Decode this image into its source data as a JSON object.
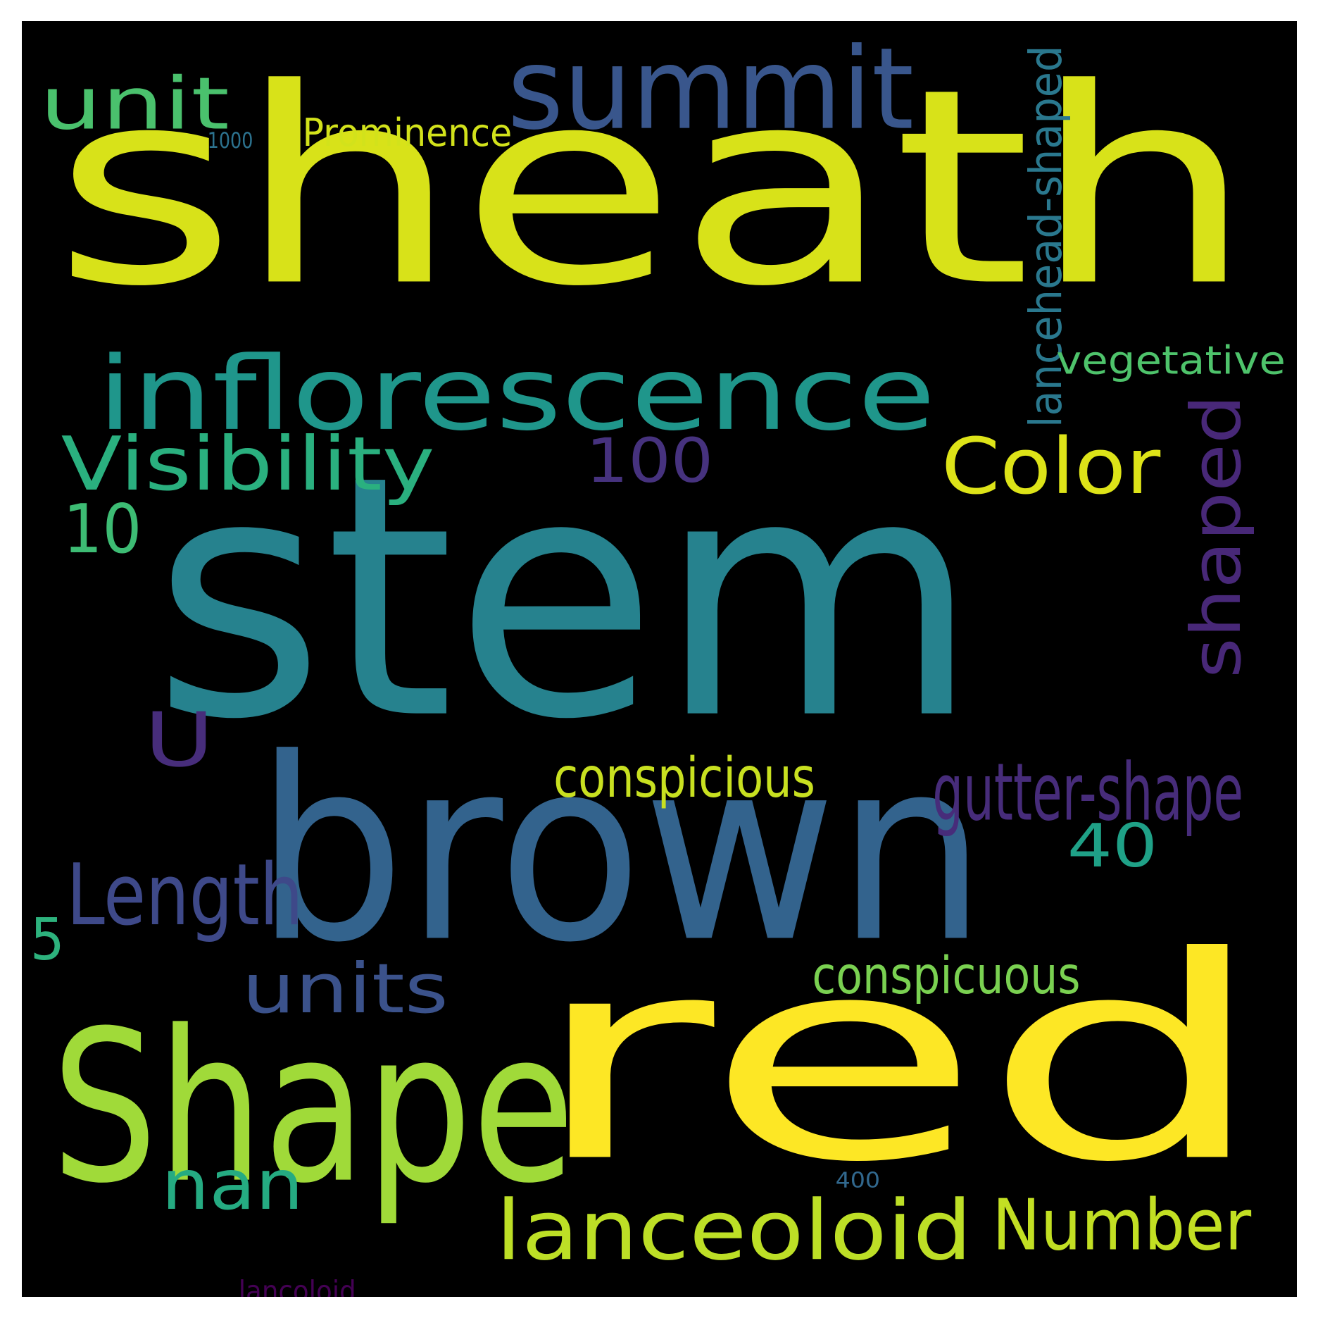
{
  "background": "#000000",
  "words": [
    {
      "id": "sheath",
      "text": "sheath",
      "color": "#d8e219"
    },
    {
      "id": "stem",
      "text": "stem",
      "color": "#26828e"
    },
    {
      "id": "brown",
      "text": "brown",
      "color": "#33638d"
    },
    {
      "id": "red",
      "text": "red",
      "color": "#fde725"
    },
    {
      "id": "shape-cap",
      "text": "Shape",
      "color": "#a0da39"
    },
    {
      "id": "inflorescence",
      "text": "inflorescence",
      "color": "#1f968b"
    },
    {
      "id": "summit",
      "text": "summit",
      "color": "#39568c"
    },
    {
      "id": "lanceoloid",
      "text": "lanceoloid",
      "color": "#bddf26"
    },
    {
      "id": "number",
      "text": "Number",
      "color": "#c2df23"
    },
    {
      "id": "shaped",
      "text": "shaped",
      "color": "#482878"
    },
    {
      "id": "length",
      "text": "Length",
      "color": "#3e4989"
    },
    {
      "id": "unit",
      "text": "unit",
      "color": "#4ac16d"
    },
    {
      "id": "visibility",
      "text": "Visibility",
      "color": "#2ab07f"
    },
    {
      "id": "color",
      "text": "Color",
      "color": "#dde318"
    },
    {
      "id": "100",
      "text": "100",
      "color": "#46327e"
    },
    {
      "id": "units",
      "text": "units",
      "color": "#3b528b"
    },
    {
      "id": "nan",
      "text": "nan",
      "color": "#25ab82"
    },
    {
      "id": "10",
      "text": "10",
      "color": "#3dbc74"
    },
    {
      "id": "u",
      "text": "U",
      "color": "#472d7b"
    },
    {
      "id": "40",
      "text": "40",
      "color": "#1fa187"
    },
    {
      "id": "5",
      "text": "5",
      "color": "#2db27d"
    },
    {
      "id": "gutter-shape",
      "text": "gutter-shape",
      "color": "#472c7a"
    },
    {
      "id": "conspicious",
      "text": "conspicious",
      "color": "#c8e020"
    },
    {
      "id": "conspicuous",
      "text": "conspicuous",
      "color": "#7ad151"
    },
    {
      "id": "lancehead-shaped",
      "text": "lancehead-shaped",
      "color": "#2a788e"
    },
    {
      "id": "prominence",
      "text": "Prominence",
      "color": "#d2e21b"
    },
    {
      "id": "vegetative",
      "text": "vegetative",
      "color": "#4ec36b"
    },
    {
      "id": "1000",
      "text": "1000",
      "color": "#2c728e"
    },
    {
      "id": "400",
      "text": "400",
      "color": "#31688e"
    },
    {
      "id": "lancoloid",
      "text": "lancoloid",
      "color": "#440154"
    }
  ]
}
